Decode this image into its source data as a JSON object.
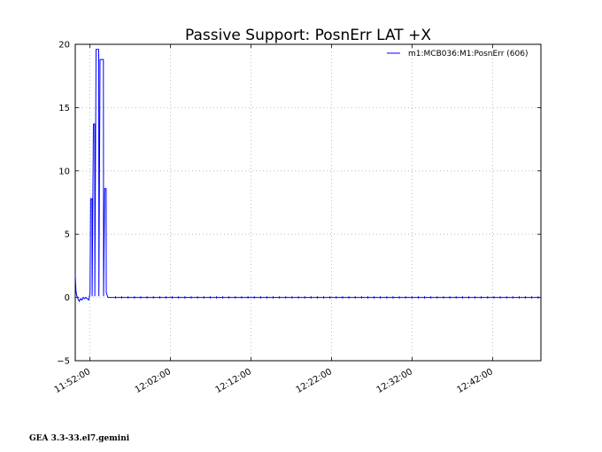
{
  "chart_data": {
    "type": "line",
    "title": "Passive Support:  PosnErr LAT +X",
    "xlabel": "",
    "ylabel": "",
    "ylim": [
      -5,
      20
    ],
    "yticks": [
      20,
      15,
      10,
      5,
      0,
      -5
    ],
    "ytick_labels": [
      "20",
      "15",
      "10",
      "5",
      "0",
      "−5"
    ],
    "xlim": [
      "11:50:10",
      "12:48:00"
    ],
    "xticks": [
      "11:52:00",
      "12:02:00",
      "12:12:00",
      "12:22:00",
      "12:32:00",
      "12:42:00"
    ],
    "grid": true,
    "legend_position": "top-right",
    "series": [
      {
        "name": "m1:MCB036:M1:PosnErr (606)",
        "color": "#0000ff",
        "points": [
          [
            "11:50:10",
            1.8
          ],
          [
            "11:50:15",
            0.5
          ],
          [
            "11:50:20",
            0.2
          ],
          [
            "11:50:30",
            -0.1
          ],
          [
            "11:50:40",
            -0.3
          ],
          [
            "11:50:50",
            -0.1
          ],
          [
            "11:51:00",
            -0.2
          ],
          [
            "11:51:10",
            0.0
          ],
          [
            "11:51:20",
            -0.1
          ],
          [
            "11:51:30",
            0.0
          ],
          [
            "11:51:40",
            -0.1
          ],
          [
            "11:51:50",
            -0.2
          ],
          [
            "11:52:00",
            0.3
          ],
          [
            "11:52:05",
            7.8
          ],
          [
            "11:52:15",
            7.8
          ],
          [
            "11:52:16",
            0.1
          ],
          [
            "11:52:25",
            13.7
          ],
          [
            "11:52:35",
            13.7
          ],
          [
            "11:52:36",
            0.1
          ],
          [
            "11:52:45",
            19.6
          ],
          [
            "11:53:05",
            19.6
          ],
          [
            "11:53:06",
            0.1
          ],
          [
            "11:53:15",
            18.8
          ],
          [
            "11:53:40",
            18.8
          ],
          [
            "11:53:41",
            0.1
          ],
          [
            "11:53:50",
            8.6
          ],
          [
            "11:54:00",
            8.6
          ],
          [
            "11:54:01",
            0.4
          ],
          [
            "11:54:10",
            0.1
          ],
          [
            "11:54:15",
            0.0
          ],
          [
            "12:48:00",
            0.0
          ]
        ]
      }
    ]
  },
  "footer": {
    "version": "GEA 3.3-33.el7.gemini"
  }
}
